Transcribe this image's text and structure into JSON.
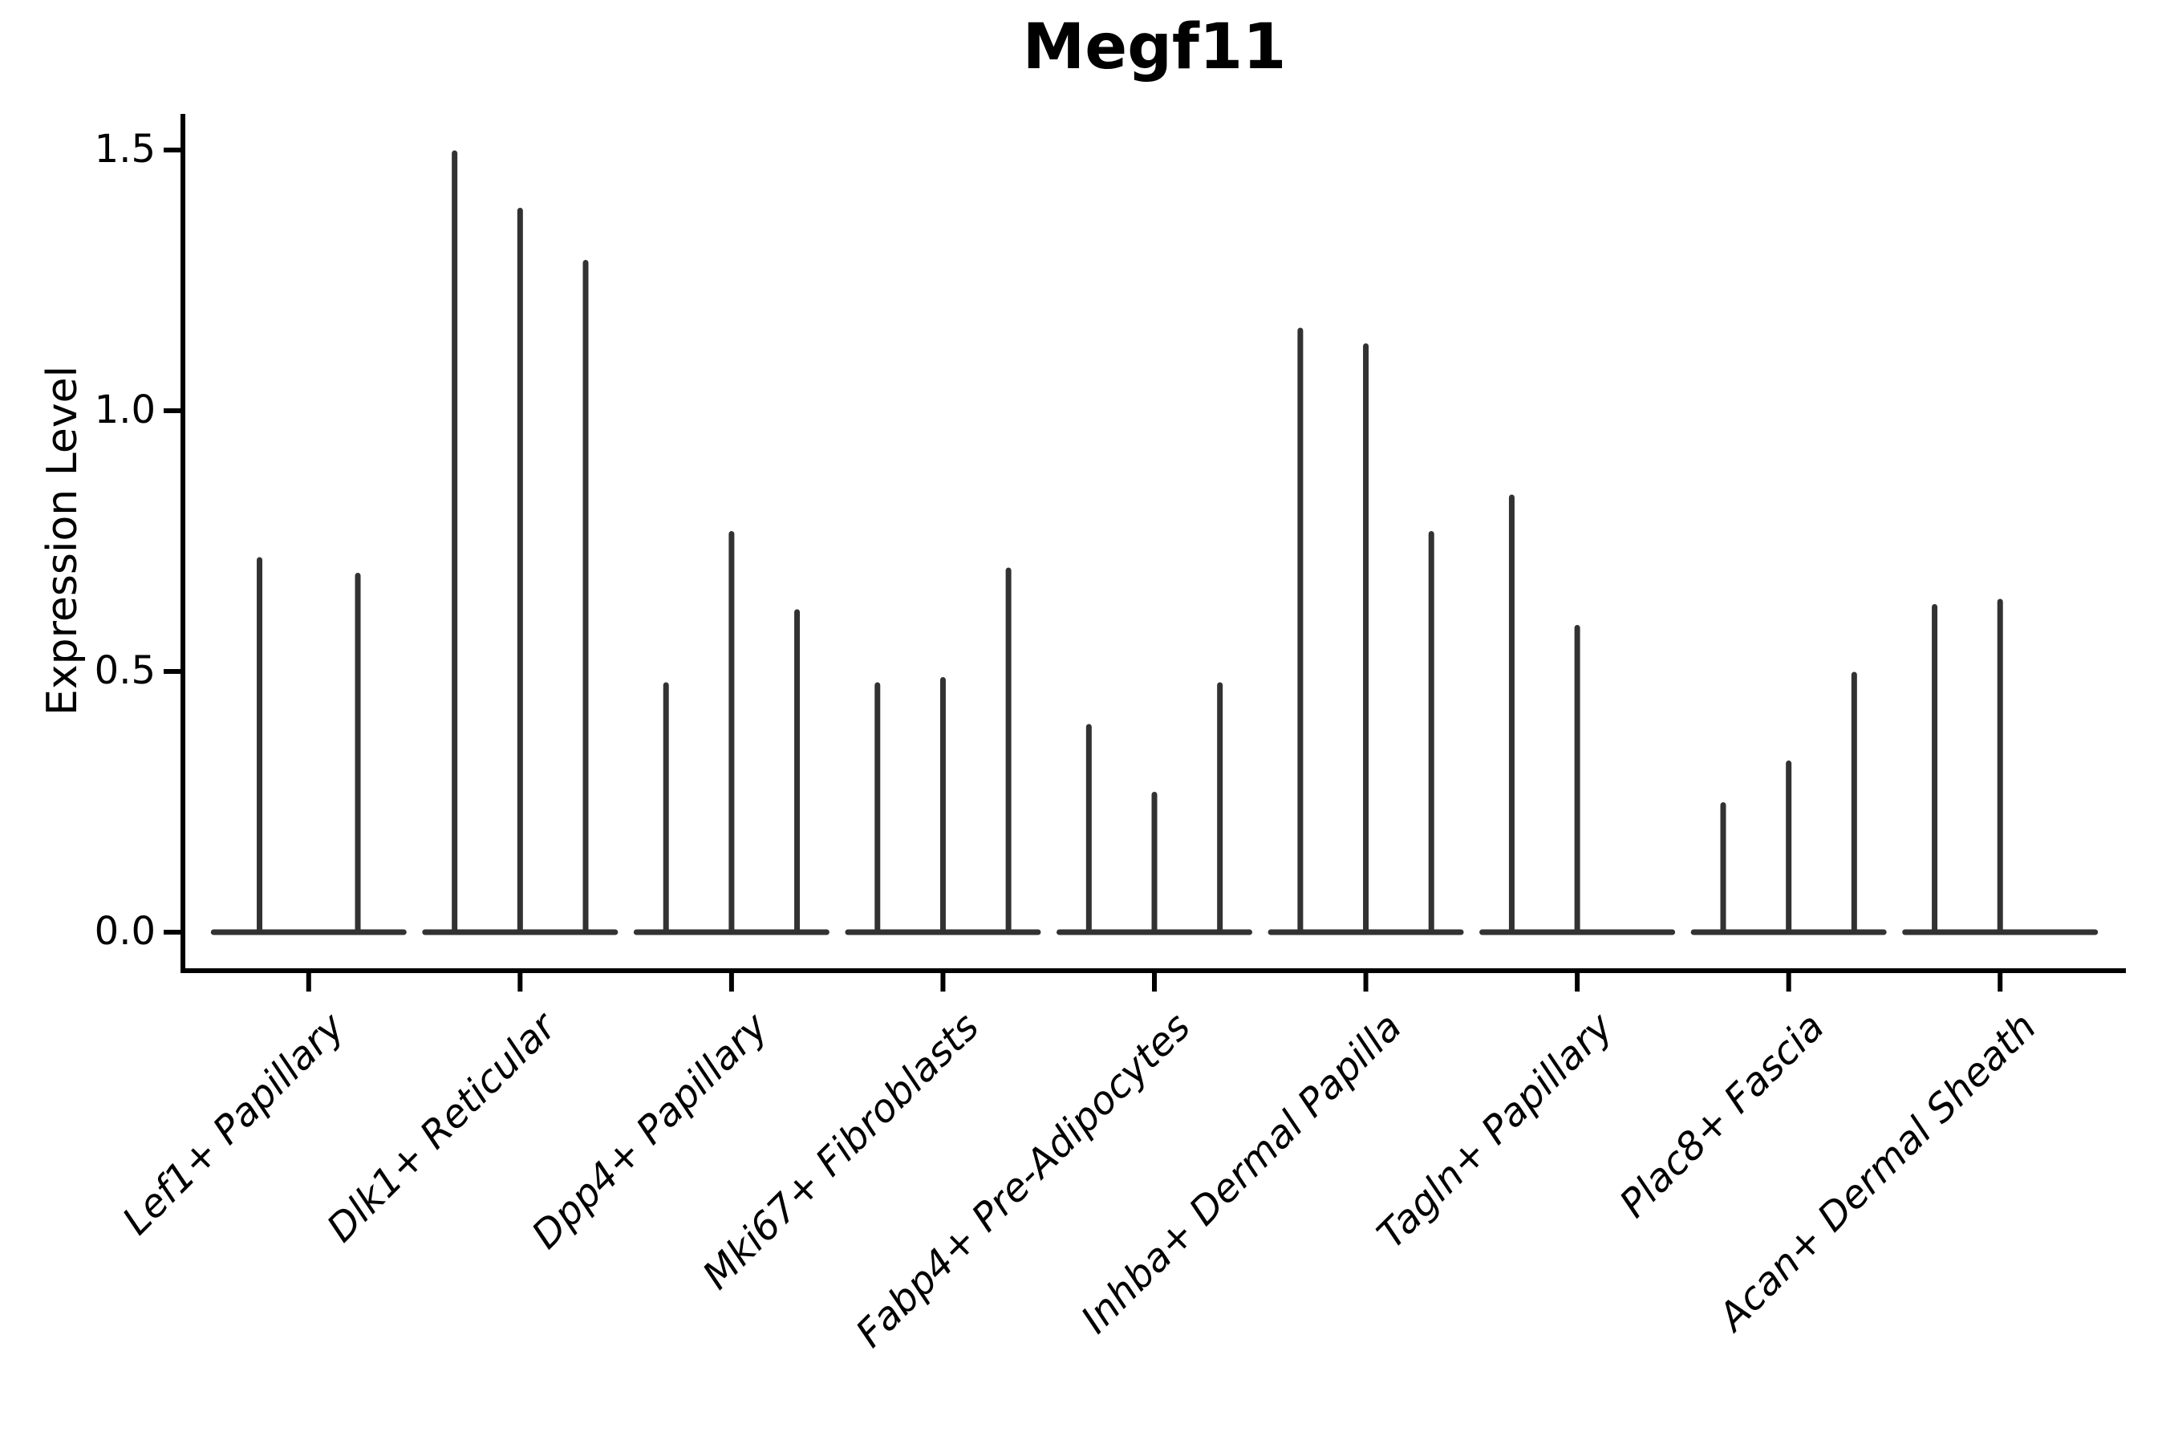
{
  "title": "Megf11",
  "axis_color": "#000000",
  "violin_color": "#323232",
  "background_color": "#ffffff",
  "chart_data": {
    "type": "violin",
    "title": "Megf11",
    "xlabel": "",
    "ylabel": "Expression Level",
    "ylim": [
      0,
      1.5
    ],
    "yticks": [
      0.0,
      0.5,
      1.0,
      1.5
    ],
    "ytick_labels": [
      "0.0",
      "0.5",
      "1.0",
      "1.5"
    ],
    "grid": false,
    "legend": "none",
    "x_label_rotation_deg": 45,
    "categories": [
      "Lef1+ Papillary",
      "Dlk1+ Reticular",
      "Dpp4+ Papillary",
      "Mki67+ Fibroblasts",
      "Fabp4+ Pre-Adipocytes",
      "Inhba+ Dermal Papilla",
      "Tagln+ Papillary",
      "Plac8+ Fascia",
      "Acan+ Dermal Sheath"
    ],
    "violin_min": 0.0,
    "groups": [
      {
        "category": "Lef1+ Papillary",
        "violin_max_values": [
          0.72,
          0.69
        ]
      },
      {
        "category": "Dlk1+ Reticular",
        "violin_max_values": [
          1.5,
          1.39,
          1.29
        ]
      },
      {
        "category": "Dpp4+ Papillary",
        "violin_max_values": [
          0.48,
          0.77,
          0.62
        ]
      },
      {
        "category": "Mki67+ Fibroblasts",
        "violin_max_values": [
          0.48,
          0.49,
          0.7
        ]
      },
      {
        "category": "Fabp4+ Pre-Adipocytes",
        "violin_max_values": [
          0.4,
          0.27,
          0.48
        ]
      },
      {
        "category": "Inhba+ Dermal Papilla",
        "violin_max_values": [
          1.16,
          1.13,
          0.77
        ]
      },
      {
        "category": "Tagln+ Papillary",
        "violin_max_values": [
          0.84,
          0.59,
          0.0
        ]
      },
      {
        "category": "Plac8+ Fascia",
        "violin_max_values": [
          0.25,
          0.33,
          0.5
        ]
      },
      {
        "category": "Acan+ Dermal Sheath",
        "violin_max_values": [
          0.63,
          0.64,
          0.0
        ]
      }
    ]
  }
}
